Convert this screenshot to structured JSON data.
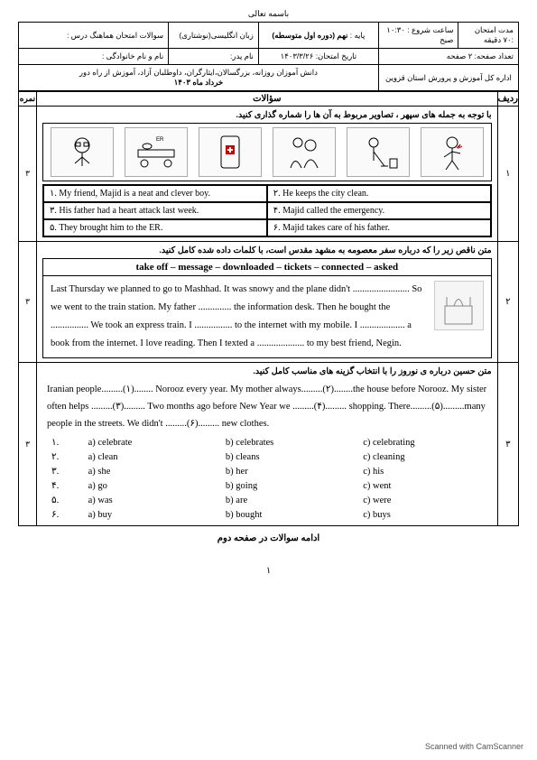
{
  "top": "باسمه تعالی",
  "header": {
    "r1c1": "سوالات امتحان هماهنگ درس :",
    "r1c2": "زبان انگلیسی(نوشتاری)",
    "r1c3": "نهم (دوره اول متوسطه)",
    "r1c3_label": "پایه :",
    "r1c4": "ساعت شروع : ۱۰:۳۰ صبح",
    "r1c5": "مدت امتحان :۷۰ دقیقه",
    "r2c1": "نام و نام خانوادگی :",
    "r2c2": "نام پدر:",
    "r2c3": "تاریخ امتحان: ۱۴۰۳/۳/۲۶",
    "r2c4": "تعداد صفحه: ۲ صفحه",
    "sub_right": "دانش آموزان روزانه، بزرگسالان،ایثارگران، داوطلبان آزاد، آموزش از راه دور",
    "sub_date": "خرداد ماه ۱۴۰۳",
    "sub_left": "اداره کل آموزش و پرورش استان قزوین"
  },
  "cols": {
    "score": "نمره",
    "q": "سؤالات",
    "row": "ردیف"
  },
  "q1": {
    "title": "با توجه به جمله های سپهر ، تصاویر مربوط به آن ها را شماره گذاری کنید.",
    "num": "۱",
    "score": "۳",
    "s1": "۱. My friend, Majid is a neat and clever boy.",
    "s2": "۲. He keeps the city clean.",
    "s3": "۳. His father had a heart attack last week.",
    "s4": "۴. Majid called the emergency.",
    "s5": "۵. They brought him to the ER.",
    "s6": "۶. Majid takes care of his father."
  },
  "q2": {
    "title": "متن ناقص زیر را که درباره سفر معصومه به مشهد مقدس است، با کلمات داده شده کامل کنید.",
    "num": "۲",
    "score": "۳",
    "bank": "take off – message – downloaded – tickets – connected – asked",
    "text": "Last Thursday we planned to go to Mashhad. It was snowy and the plane didn't ........................ So we went to the train station. My father .............. the information desk. Then he bought the ................ We took an express train. I ................ to the internet with my mobile. I ................... a book from the internet. I love reading. Then I texted a .................... to my best friend, Negin."
  },
  "q3": {
    "title": "متن حسین درباره ی نوروز را با انتخاب گزینه های مناسب کامل کنید.",
    "num": "۳",
    "score": "۳",
    "text": "Iranian people.........(۱)........ Norooz every year. My mother always.........(۲)........the house before Norooz. My sister often helps .........(۳).........  Two months ago before New Year we .........(۴)......... shopping. There.........(۵).........many people in the streets.  We didn't .........(۶)......... new clothes.",
    "opts": [
      {
        "n": "۱.",
        "a": "a) celebrate",
        "b": "b) celebrates",
        "c": "c) celebrating"
      },
      {
        "n": "۲.",
        "a": "a) clean",
        "b": "b) cleans",
        "c": "c) cleaning"
      },
      {
        "n": "۳.",
        "a": "a) she",
        "b": "b) her",
        "c": "c) his"
      },
      {
        "n": "۴.",
        "a": "a) go",
        "b": "b) going",
        "c": "c) went"
      },
      {
        "n": "۵.",
        "a": "a) was",
        "b": "b) are",
        "c": "c) were"
      },
      {
        "n": "۶.",
        "a": "a) buy",
        "b": "b) bought",
        "c": "c) buys"
      }
    ]
  },
  "continue": "ادامه سوالات در صفحه دوم",
  "pagenum": "۱",
  "scanned": "Scanned with CamScanner"
}
